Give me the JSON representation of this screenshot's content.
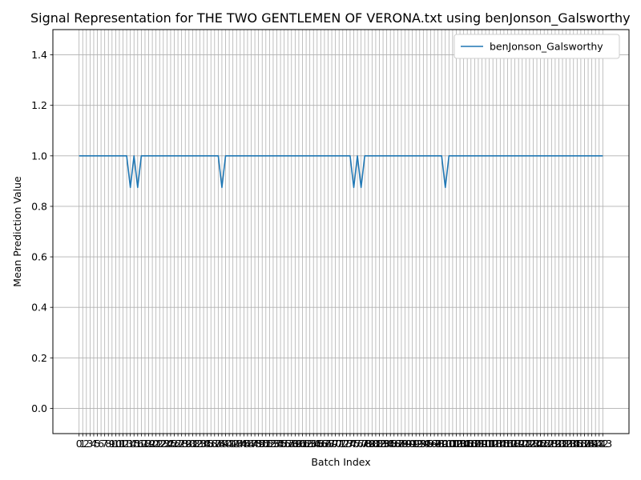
{
  "chart_data": {
    "type": "line",
    "title": "Signal Representation for THE TWO GENTLEMEN OF VERONA.txt using benJonson_Galsworthy",
    "xlabel": "Batch Index",
    "ylabel": "Mean Prediction Value",
    "xlim": [
      0,
      143
    ],
    "ylim": [
      -0.1,
      1.5
    ],
    "x_ticks": [
      0,
      1,
      2,
      3,
      4,
      5,
      6,
      7,
      8,
      9,
      10,
      11,
      12,
      13,
      14,
      15,
      16,
      17,
      18,
      19,
      20,
      21,
      22,
      23,
      24,
      25,
      26,
      27,
      28,
      29,
      30,
      31,
      32,
      33,
      34,
      35,
      36,
      37,
      38,
      39,
      40,
      41,
      42,
      43,
      44,
      45,
      46,
      47,
      48,
      49,
      50,
      51,
      52,
      53,
      54,
      55,
      56,
      57,
      58,
      59,
      60,
      61,
      62,
      63,
      64,
      65,
      66,
      67,
      68,
      69,
      70,
      71,
      72,
      73,
      74,
      75,
      76,
      77,
      78,
      79,
      80,
      81,
      82,
      83,
      84,
      85,
      86,
      87,
      88,
      89,
      90,
      91,
      92,
      93,
      94,
      95,
      96,
      97,
      98,
      99,
      100,
      101,
      102,
      103,
      104,
      105,
      106,
      107,
      108,
      109,
      110,
      111,
      112,
      113,
      114,
      115,
      116,
      117,
      118,
      119,
      120,
      121,
      122,
      123,
      124,
      125,
      126,
      127,
      128,
      129,
      130,
      131,
      132,
      133,
      134,
      135,
      136,
      137,
      138,
      139,
      140,
      141,
      142,
      143
    ],
    "y_ticks": [
      "0.0",
      "0.2",
      "0.4",
      "0.6",
      "0.8",
      "1.0",
      "1.2",
      "1.4"
    ],
    "grid": true,
    "legend_position": "top-right",
    "line_color": "#1f77b4",
    "grid_color": "#b0b0b0",
    "series": [
      {
        "name": "benJonson_Galsworthy",
        "default": 1.0,
        "dips": [
          {
            "x": 14,
            "y": 0.875
          },
          {
            "x": 16,
            "y": 0.875
          },
          {
            "x": 39,
            "y": 0.875
          },
          {
            "x": 75,
            "y": 0.875
          },
          {
            "x": 77,
            "y": 0.875
          },
          {
            "x": 100,
            "y": 0.875
          }
        ]
      }
    ]
  }
}
